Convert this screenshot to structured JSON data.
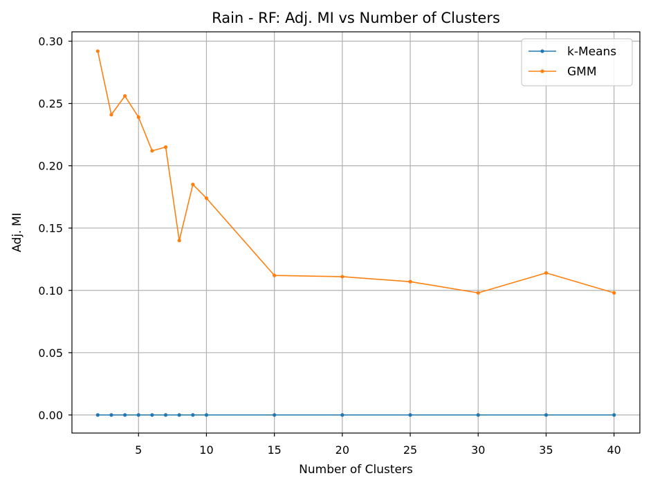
{
  "chart_data": {
    "type": "line",
    "title": "Rain - RF: Adj. MI vs Number of Clusters",
    "xlabel": "Number of Clusters",
    "ylabel": "Adj. MI",
    "x": [
      2,
      3,
      4,
      5,
      6,
      7,
      8,
      9,
      10,
      15,
      20,
      25,
      30,
      35,
      40
    ],
    "xlim": [
      0.1,
      41.9
    ],
    "ylim": [
      -0.0145,
      0.3075
    ],
    "xticks": [
      5,
      10,
      15,
      20,
      25,
      30,
      35,
      40
    ],
    "xtick_labels": [
      "5",
      "10",
      "15",
      "20",
      "25",
      "30",
      "35",
      "40"
    ],
    "yticks": [
      0.0,
      0.05,
      0.1,
      0.15,
      0.2,
      0.25,
      0.3
    ],
    "ytick_labels": [
      "0.00",
      "0.05",
      "0.10",
      "0.15",
      "0.20",
      "0.25",
      "0.30"
    ],
    "grid": true,
    "legend_position": "top-right",
    "series": [
      {
        "name": "k-Means",
        "color": "#1f77b4",
        "values": [
          0.0,
          0.0,
          0.0,
          0.0,
          0.0,
          0.0,
          0.0,
          0.0,
          0.0,
          0.0,
          0.0,
          0.0,
          0.0,
          0.0,
          0.0
        ]
      },
      {
        "name": "GMM",
        "color": "#ff7f0e",
        "values": [
          0.292,
          0.241,
          0.256,
          0.239,
          0.212,
          0.215,
          0.14,
          0.185,
          0.174,
          0.112,
          0.111,
          0.107,
          0.098,
          0.114,
          0.098
        ]
      }
    ]
  }
}
